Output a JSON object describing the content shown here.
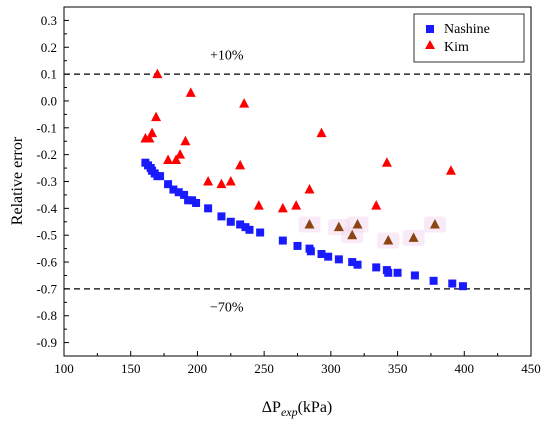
{
  "chart_data": {
    "type": "scatter",
    "xlabel_prefix": "ΔP",
    "xlabel_sub": "exp",
    "xlabel_unit": "(kPa)",
    "ylabel": "Relative error",
    "xlim": [
      100,
      450
    ],
    "ylim": [
      -0.95,
      0.35
    ],
    "xticks": [
      100,
      150,
      200,
      250,
      300,
      350,
      400,
      450
    ],
    "yticks": [
      -0.9,
      -0.8,
      -0.7,
      -0.6,
      -0.5,
      -0.4,
      -0.3,
      -0.2,
      -0.1,
      0.0,
      0.1,
      0.2,
      0.3
    ],
    "grid": false,
    "legend_position": "top-right",
    "reference_lines": [
      {
        "y": 0.1,
        "label": "+10%",
        "label_x": 222,
        "label_y": 0.17
      },
      {
        "y": -0.7,
        "label": "−70%",
        "label_x": 222,
        "label_y": -0.77
      }
    ],
    "series": [
      {
        "name": "Nashine",
        "marker": "square",
        "color": "#1a1aff",
        "points": [
          [
            161,
            -0.23
          ],
          [
            163,
            -0.24
          ],
          [
            165,
            -0.25
          ],
          [
            166,
            -0.26
          ],
          [
            168,
            -0.27
          ],
          [
            170,
            -0.28
          ],
          [
            172,
            -0.28
          ],
          [
            178,
            -0.31
          ],
          [
            182,
            -0.33
          ],
          [
            186,
            -0.34
          ],
          [
            190,
            -0.35
          ],
          [
            193,
            -0.37
          ],
          [
            196,
            -0.37
          ],
          [
            199,
            -0.38
          ],
          [
            208,
            -0.4
          ],
          [
            218,
            -0.43
          ],
          [
            225,
            -0.45
          ],
          [
            232,
            -0.46
          ],
          [
            236,
            -0.47
          ],
          [
            239,
            -0.48
          ],
          [
            247,
            -0.49
          ],
          [
            264,
            -0.52
          ],
          [
            275,
            -0.54
          ],
          [
            284,
            -0.55
          ],
          [
            285,
            -0.56
          ],
          [
            293,
            -0.57
          ],
          [
            298,
            -0.58
          ],
          [
            306,
            -0.59
          ],
          [
            316,
            -0.6
          ],
          [
            320,
            -0.61
          ],
          [
            334,
            -0.62
          ],
          [
            342,
            -0.63
          ],
          [
            343,
            -0.64
          ],
          [
            350,
            -0.64
          ],
          [
            363,
            -0.65
          ],
          [
            377,
            -0.67
          ],
          [
            391,
            -0.68
          ],
          [
            399,
            -0.69
          ]
        ]
      },
      {
        "name": "Kim",
        "marker": "triangle",
        "color": "#ff0000",
        "points": [
          [
            161,
            -0.14
          ],
          [
            164,
            -0.14
          ],
          [
            166,
            -0.12
          ],
          [
            169,
            -0.06
          ],
          [
            170,
            0.1
          ],
          [
            178,
            -0.22
          ],
          [
            184,
            -0.22
          ],
          [
            187,
            -0.2
          ],
          [
            191,
            -0.15
          ],
          [
            195,
            0.03
          ],
          [
            208,
            -0.3
          ],
          [
            218,
            -0.31
          ],
          [
            225,
            -0.3
          ],
          [
            232,
            -0.24
          ],
          [
            235,
            -0.01
          ],
          [
            246,
            -0.39
          ],
          [
            264,
            -0.4
          ],
          [
            274,
            -0.39
          ],
          [
            284,
            -0.33
          ],
          [
            293,
            -0.12
          ],
          [
            334,
            -0.39
          ],
          [
            342,
            -0.23
          ],
          [
            390,
            -0.26
          ]
        ]
      },
      {
        "name": "",
        "marker": "triangle",
        "color": "#8b4513",
        "points": [
          [
            284,
            -0.46
          ],
          [
            306,
            -0.47
          ],
          [
            316,
            -0.5
          ],
          [
            320,
            -0.46
          ],
          [
            343,
            -0.52
          ],
          [
            362,
            -0.51
          ],
          [
            378,
            -0.46
          ]
        ]
      }
    ]
  }
}
